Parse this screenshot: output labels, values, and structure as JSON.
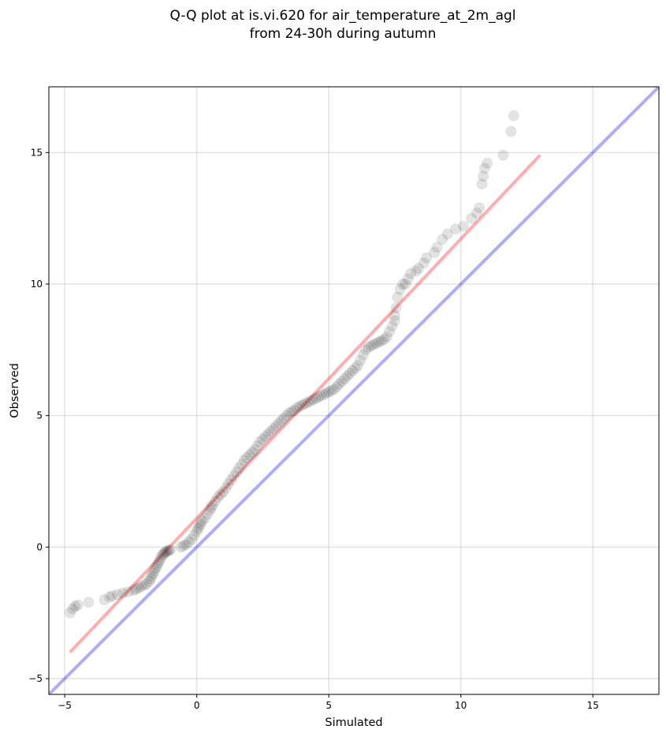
{
  "chart_data": {
    "type": "scatter",
    "title_lines": [
      "Q-Q plot at is.vi.620 for air_temperature_at_2m_agl",
      "from 24-30h during autumn"
    ],
    "xlabel": "Simulated",
    "ylabel": "Observed",
    "xlim": [
      -5.6,
      17.5
    ],
    "ylim": [
      -5.6,
      17.5
    ],
    "xticks": [
      -5,
      0,
      5,
      10,
      15
    ],
    "yticks": [
      -5,
      0,
      5,
      10,
      15
    ],
    "xtick_labels": [
      "−5",
      "0",
      "5",
      "10",
      "15"
    ],
    "ytick_labels": [
      "−5",
      "0",
      "5",
      "10",
      "15"
    ],
    "grid": true,
    "colors": {
      "points": "#000000",
      "fit_line": "#ff0000",
      "identity_line": "#0000ff"
    },
    "points": {
      "x": [
        -4.8,
        -4.7,
        -4.6,
        -4.5,
        -4.1,
        -3.5,
        -3.3,
        -3.2,
        -3.0,
        -2.8,
        -2.6,
        -2.4,
        -2.3,
        -2.2,
        -2.1,
        -2.0,
        -1.9,
        -1.8,
        -1.75,
        -1.7,
        -1.65,
        -1.6,
        -1.55,
        -1.5,
        -1.45,
        -1.4,
        -1.35,
        -1.3,
        -1.25,
        -1.2,
        -1.15,
        -1.1,
        -1.05,
        -1.0,
        -0.6,
        -0.5,
        -0.4,
        -0.3,
        -0.2,
        -0.1,
        0.0,
        0.05,
        0.1,
        0.15,
        0.2,
        0.3,
        0.4,
        0.5,
        0.55,
        0.6,
        0.7,
        0.8,
        0.9,
        1.0,
        1.1,
        1.2,
        1.3,
        1.4,
        1.5,
        1.6,
        1.7,
        1.8,
        1.9,
        2.0,
        2.1,
        2.2,
        2.3,
        2.4,
        2.5,
        2.6,
        2.7,
        2.8,
        2.9,
        3.0,
        3.1,
        3.2,
        3.3,
        3.4,
        3.5,
        3.6,
        3.7,
        3.8,
        3.9,
        4.0,
        4.1,
        4.2,
        4.3,
        4.4,
        4.5,
        4.6,
        4.7,
        4.8,
        4.9,
        5.0,
        5.1,
        5.2,
        5.3,
        5.4,
        5.5,
        5.6,
        5.7,
        5.8,
        5.9,
        6.0,
        6.1,
        6.2,
        6.3,
        6.4,
        6.5,
        6.6,
        6.7,
        6.8,
        6.9,
        7.0,
        7.1,
        7.2,
        7.3,
        7.4,
        7.5,
        7.5,
        7.55,
        7.6,
        7.7,
        7.8,
        7.9,
        8.0,
        8.1,
        8.3,
        8.4,
        8.6,
        8.7,
        9.0,
        9.1,
        9.3,
        9.5,
        9.8,
        10.1,
        10.4,
        10.6,
        10.7,
        10.8,
        10.85,
        10.9,
        11.0,
        11.6,
        11.9,
        12.0
      ],
      "y": [
        -2.5,
        -2.35,
        -2.25,
        -2.2,
        -2.1,
        -2.0,
        -1.9,
        -1.85,
        -1.8,
        -1.75,
        -1.7,
        -1.65,
        -1.6,
        -1.55,
        -1.5,
        -1.45,
        -1.4,
        -1.3,
        -1.2,
        -1.1,
        -1.0,
        -0.9,
        -0.8,
        -0.7,
        -0.6,
        -0.5,
        -0.4,
        -0.3,
        -0.25,
        -0.2,
        -0.18,
        -0.15,
        -0.12,
        -0.1,
        0.0,
        0.05,
        0.1,
        0.2,
        0.3,
        0.45,
        0.6,
        0.7,
        0.8,
        0.9,
        1.0,
        1.1,
        1.25,
        1.4,
        1.5,
        1.6,
        1.75,
        1.9,
        2.0,
        2.1,
        2.25,
        2.4,
        2.55,
        2.7,
        2.85,
        3.0,
        3.15,
        3.3,
        3.4,
        3.5,
        3.6,
        3.7,
        3.85,
        4.0,
        4.1,
        4.2,
        4.3,
        4.4,
        4.5,
        4.6,
        4.7,
        4.8,
        4.9,
        5.0,
        5.1,
        5.15,
        5.2,
        5.3,
        5.35,
        5.4,
        5.45,
        5.5,
        5.55,
        5.6,
        5.65,
        5.7,
        5.75,
        5.8,
        5.85,
        5.9,
        5.95,
        6.0,
        6.1,
        6.2,
        6.3,
        6.4,
        6.5,
        6.6,
        6.7,
        6.8,
        6.9,
        7.1,
        7.3,
        7.5,
        7.6,
        7.65,
        7.7,
        7.75,
        7.8,
        7.85,
        7.9,
        8.0,
        8.2,
        8.4,
        8.6,
        8.8,
        9.1,
        9.5,
        9.8,
        10.0,
        10.0,
        10.2,
        10.4,
        10.5,
        10.6,
        10.8,
        11.0,
        11.2,
        11.4,
        11.7,
        11.9,
        12.1,
        12.2,
        12.5,
        12.7,
        12.9,
        13.8,
        14.1,
        14.4,
        14.6,
        14.9,
        15.8,
        16.4
      ]
    },
    "fit_line": {
      "x": [
        -4.8,
        13.0
      ],
      "y": [
        -4.0,
        14.9
      ]
    },
    "identity_line": {
      "x": [
        -5.6,
        17.5
      ],
      "y": [
        -5.6,
        17.5
      ]
    }
  }
}
